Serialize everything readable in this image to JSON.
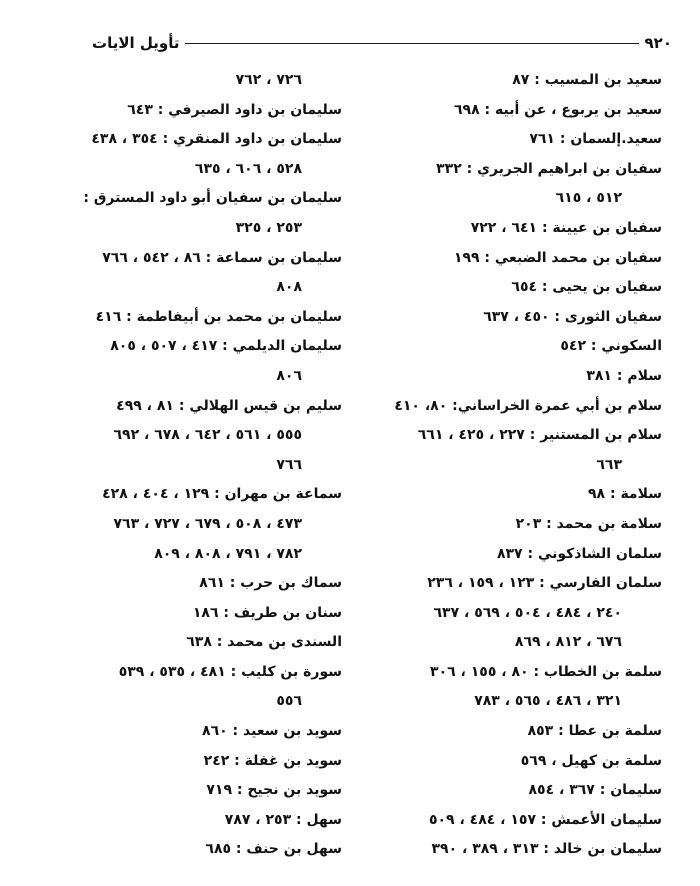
{
  "header": {
    "page_number": "٩٢٠",
    "title": "تأويل الايات"
  },
  "columns": {
    "right": [
      {
        "text": "سعيد بن المسيب : ٨٧",
        "continuation": false
      },
      {
        "text": "سعيد بن يربوع ، عن أبيه : ٦٩٨",
        "continuation": false
      },
      {
        "text": "سعيد.إلسمان : ٧٦١",
        "continuation": false
      },
      {
        "text": "سفيان بن ابراهيم الجريري : ٣٣٢",
        "continuation": false
      },
      {
        "text": "٥١٢ ، ٦١٥",
        "continuation": true
      },
      {
        "text": "سفيان بن عيينة : ٦٤١ ، ٧٢٢",
        "continuation": false
      },
      {
        "text": "سفيان بن محمد الضبعي : ١٩٩",
        "continuation": false
      },
      {
        "text": "سفيان بن يحيى : ٦٥٤",
        "continuation": false
      },
      {
        "text": "سفيان الثورى : ٤٥٠ ، ٦٣٧",
        "continuation": false
      },
      {
        "text": "السكوني : ٥٤٢",
        "continuation": false
      },
      {
        "text": "سلام : ٣٨١",
        "continuation": false
      },
      {
        "text": "سلام بن أبي عمرة الخراساني: ٨٠، ٤١٠",
        "continuation": false
      },
      {
        "text": "سلام بن المستنير : ٢٢٧ ، ٤٢٥ ، ٦٦١",
        "continuation": false
      },
      {
        "text": "٦٦٣",
        "continuation": true
      },
      {
        "text": "سلامة : ٩٨",
        "continuation": false
      },
      {
        "text": "سلامة بن محمد : ٢٠٣",
        "continuation": false
      },
      {
        "text": "سلمان الشاذكوني : ٨٣٧",
        "continuation": false
      },
      {
        "text": "سلمان الفارسي : ١٢٣ ، ١٥٩ ، ٢٣٦",
        "continuation": false
      },
      {
        "text": "٢٤٠ ، ٤٨٤ ، ٥٠٤ ، ٥٦٩ ، ٦٣٧",
        "continuation": true
      },
      {
        "text": "٦٧٦ ، ٨١٢ ، ٨٦٩",
        "continuation": true
      },
      {
        "text": "سلمة بن الخطاب : ٨٠ ، ١٥٥ ، ٣٠٦",
        "continuation": false
      },
      {
        "text": "٣٢١ ، ٤٨٦ ، ٥٦٥ ، ٧٨٣",
        "continuation": true
      },
      {
        "text": "سلمة بن عطا : ٨٥٣",
        "continuation": false
      },
      {
        "text": "سلمة بن كهيل ، ٥٦٩",
        "continuation": false
      },
      {
        "text": "سليمان : ٣٦٧ ، ٨٥٤",
        "continuation": false
      },
      {
        "text": "سليمان الأعمش : ١٥٧ ، ٤٨٤ ، ٥٠٩",
        "continuation": false
      },
      {
        "text": "سليمان بن خالد : ٣١٣ ، ٣٨٩ ، ٣٩٠",
        "continuation": false
      }
    ],
    "left": [
      {
        "text": "٧٢٦ ، ٧٦٢",
        "continuation": true
      },
      {
        "text": "سليمان بن داود الصيرفي : ٦٤٣",
        "continuation": false
      },
      {
        "text": "سليمان بن داود المنقري : ٣٥٤ ، ٤٣٨",
        "continuation": false
      },
      {
        "text": "٥٢٨ ، ٦٠٦ ، ٦٣٥",
        "continuation": true
      },
      {
        "text": "سليمان بن سفيان أبو داود المسترق :",
        "continuation": false
      },
      {
        "text": "٢٥٣ ، ٣٢٥",
        "continuation": true
      },
      {
        "text": "سليمان بن سماعة : ٨٦ ، ٥٤٢ ، ٧٦٦",
        "continuation": false
      },
      {
        "text": "٨٠٨",
        "continuation": true
      },
      {
        "text": "سليمان بن محمد بن أبيفاطمة : ٤١٦",
        "continuation": false
      },
      {
        "text": "سليمان الديلمي : ٤١٧ ، ٥٠٧ ، ٨٠٥",
        "continuation": false
      },
      {
        "text": "٨٠٦",
        "continuation": true
      },
      {
        "text": "سليم بن قيس الهلالي : ٨١ ، ٤٩٩",
        "continuation": false
      },
      {
        "text": "٥٥٥ ، ٥٦١ ، ٦٤٢ ، ٦٧٨ ، ٦٩٢",
        "continuation": true
      },
      {
        "text": "٧٦٦",
        "continuation": true
      },
      {
        "text": "سماعة بن مهران : ١٢٩ ، ٤٠٤ ، ٤٢٨",
        "continuation": false
      },
      {
        "text": "٤٧٣ ، ٥٠٨ ، ٦٧٩ ، ٧٢٧ ، ٧٦٣",
        "continuation": true
      },
      {
        "text": "٧٨٢ ، ٧٩١ ، ٨٠٨ ، ٨٠٩",
        "continuation": true
      },
      {
        "text": "سماك بن حرب : ٨٦١",
        "continuation": false
      },
      {
        "text": "سنان بن طريف : ١٨٦",
        "continuation": false
      },
      {
        "text": "السندى بن محمد : ٦٣٨",
        "continuation": false
      },
      {
        "text": "سورة بن كليب : ٤٨١ ، ٥٣٥ ، ٥٣٩",
        "continuation": false
      },
      {
        "text": "٥٥٦",
        "continuation": true
      },
      {
        "text": "سويد بن سعيد : ٨٦٠",
        "continuation": false
      },
      {
        "text": "سويد بن غفلة : ٢٤٢",
        "continuation": false
      },
      {
        "text": "سويد بن نجيح : ٧١٩",
        "continuation": false
      },
      {
        "text": "سهل : ٢٥٣ ، ٧٨٧",
        "continuation": false
      },
      {
        "text": "سهل بن حنف : ٦٨٥",
        "continuation": false
      }
    ]
  }
}
